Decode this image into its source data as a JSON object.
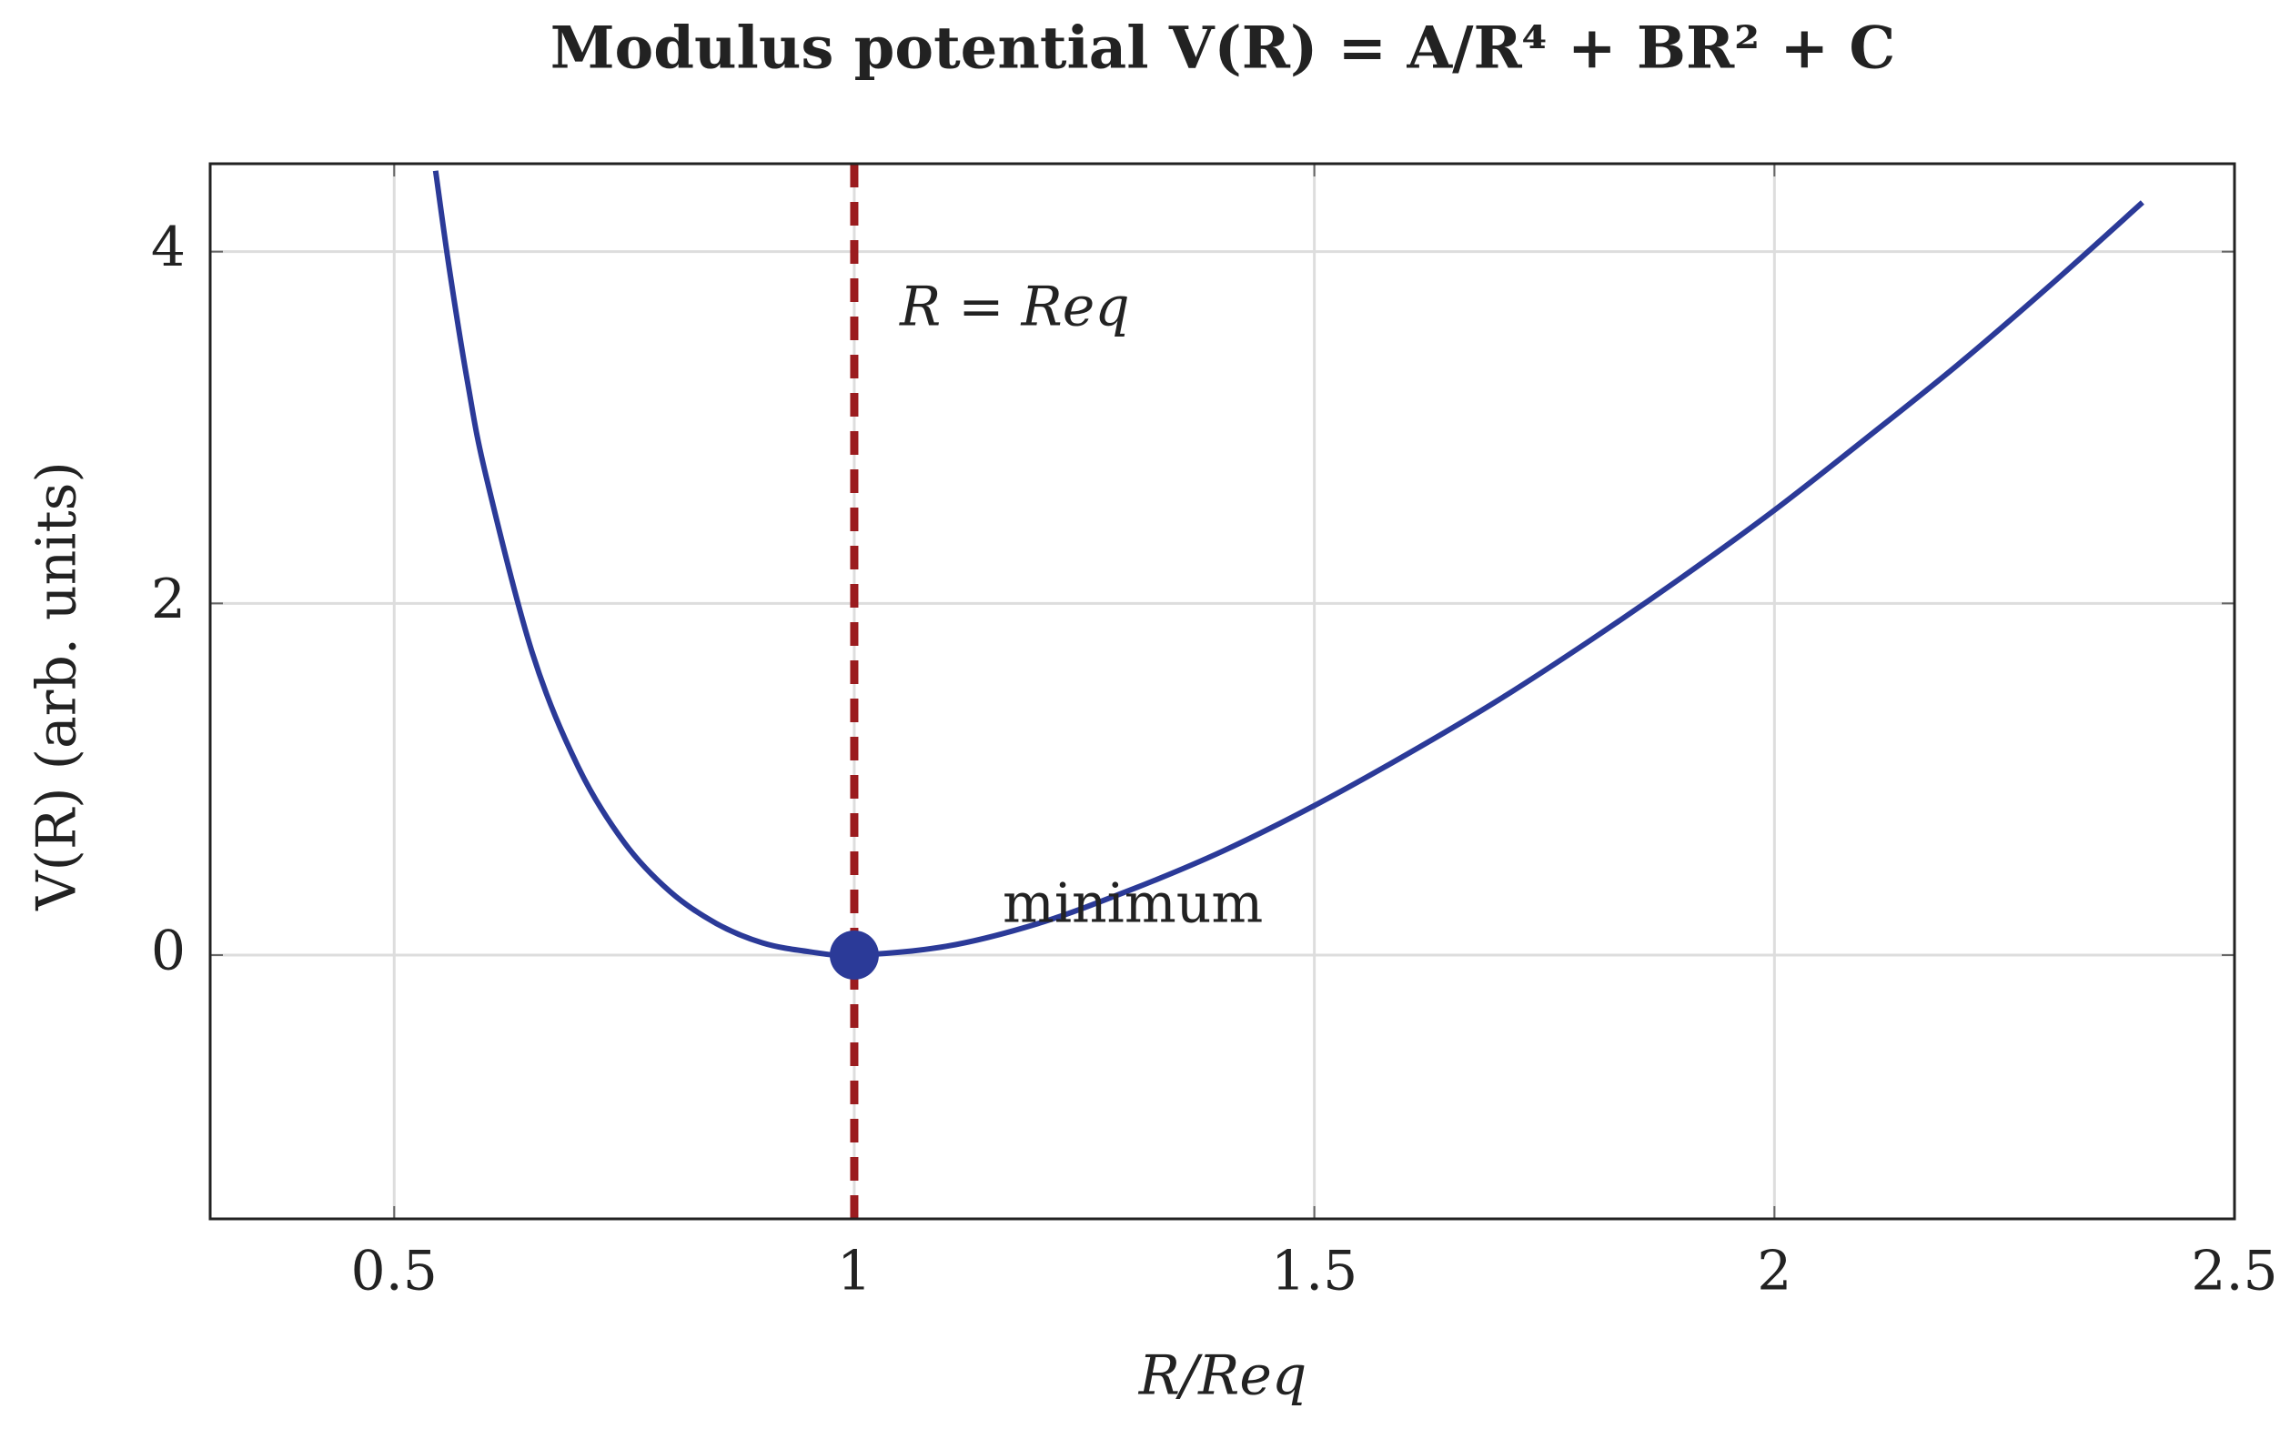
{
  "chart_data": {
    "type": "line",
    "title": "Modulus potential V(R) = A/R⁴ + BR² + C",
    "xlabel": "R/Req",
    "ylabel": "V(R) (arb. units)",
    "x": [
      0.545,
      0.56,
      0.58,
      0.6,
      0.65,
      0.7,
      0.75,
      0.8,
      0.85,
      0.9,
      0.95,
      1.0,
      1.1,
      1.2,
      1.3,
      1.4,
      1.5,
      1.6,
      1.7,
      1.8,
      1.9,
      2.0,
      2.1,
      2.2,
      2.3,
      2.4
    ],
    "values": [
      4.46,
      3.9,
      3.25,
      2.72,
      1.72,
      1.07,
      0.64,
      0.36,
      0.18,
      0.07,
      0.02,
      0,
      0.05,
      0.18,
      0.37,
      0.59,
      0.85,
      1.14,
      1.45,
      1.79,
      2.15,
      2.53,
      2.94,
      3.36,
      3.81,
      4.28
    ],
    "color": "#2b3a98",
    "xlim": [
      0.3,
      2.5
    ],
    "xticks": [
      0.5,
      1,
      1.5,
      2,
      2.5
    ],
    "ylim": [
      -1.5,
      4.5
    ],
    "yticks": [
      0,
      2,
      4
    ],
    "grid": true,
    "vline": {
      "x": 1,
      "label": "R = Req",
      "color": "#9b1c1f"
    },
    "marker": {
      "x": 1,
      "y": 0,
      "label": "minimum",
      "color": "#2b3a98"
    }
  }
}
